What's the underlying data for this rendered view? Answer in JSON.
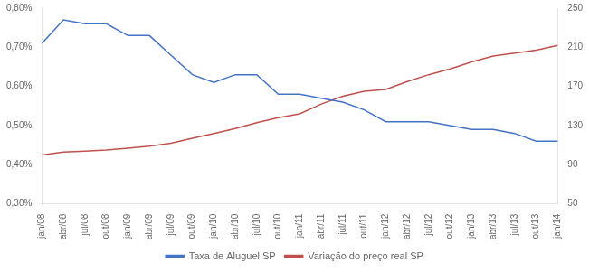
{
  "chart_data": {
    "type": "line",
    "categories": [
      "jan/08",
      "abr/08",
      "jul/08",
      "out/08",
      "jan/09",
      "abr/09",
      "jul/09",
      "out/09",
      "jan/10",
      "abr/10",
      "jul/10",
      "out/10",
      "jan/11",
      "abr/11",
      "jul/11",
      "out/11",
      "jan/12",
      "abr/12",
      "jul/12",
      "out/12",
      "jan/13",
      "abr/13",
      "jul/13",
      "out/13",
      "jan/14"
    ],
    "series": [
      {
        "name": "Taxa de Aluguel SP",
        "color": "#4472C4",
        "values": [
          0.0071,
          0.0077,
          0.0076,
          0.0076,
          0.0073,
          0.0073,
          0.0068,
          0.0063,
          0.0061,
          0.0063,
          0.0063,
          0.0058,
          0.0058,
          0.0057,
          0.0056,
          0.0054,
          0.0051,
          0.0051,
          0.0051,
          0.005,
          0.0049,
          0.0049,
          0.0048,
          0.0046,
          0.0046
        ]
      },
      {
        "name": "Variação do preço real SP",
        "color": "#C0504D",
        "axis": "y2",
        "values": [
          100,
          103,
          104,
          105,
          107,
          109,
          112,
          117,
          122,
          127,
          133,
          138,
          142,
          152,
          160,
          165,
          167,
          175,
          182,
          188,
          195,
          201,
          204,
          207,
          212
        ]
      }
    ],
    "ylim": [
      0.003,
      0.008
    ],
    "yticks": [
      {
        "value": 0.003,
        "label": "0,30%"
      },
      {
        "value": 0.004,
        "label": "0,40%"
      },
      {
        "value": 0.005,
        "label": "0,50%"
      },
      {
        "value": 0.006,
        "label": "0,60%"
      },
      {
        "value": 0.007,
        "label": "0,70%"
      },
      {
        "value": 0.008,
        "label": "0,80%"
      }
    ],
    "y2lim": [
      50,
      250
    ],
    "y2ticks": [
      50,
      90,
      130,
      170,
      210,
      250
    ],
    "grid": false,
    "legend": "bottom"
  }
}
